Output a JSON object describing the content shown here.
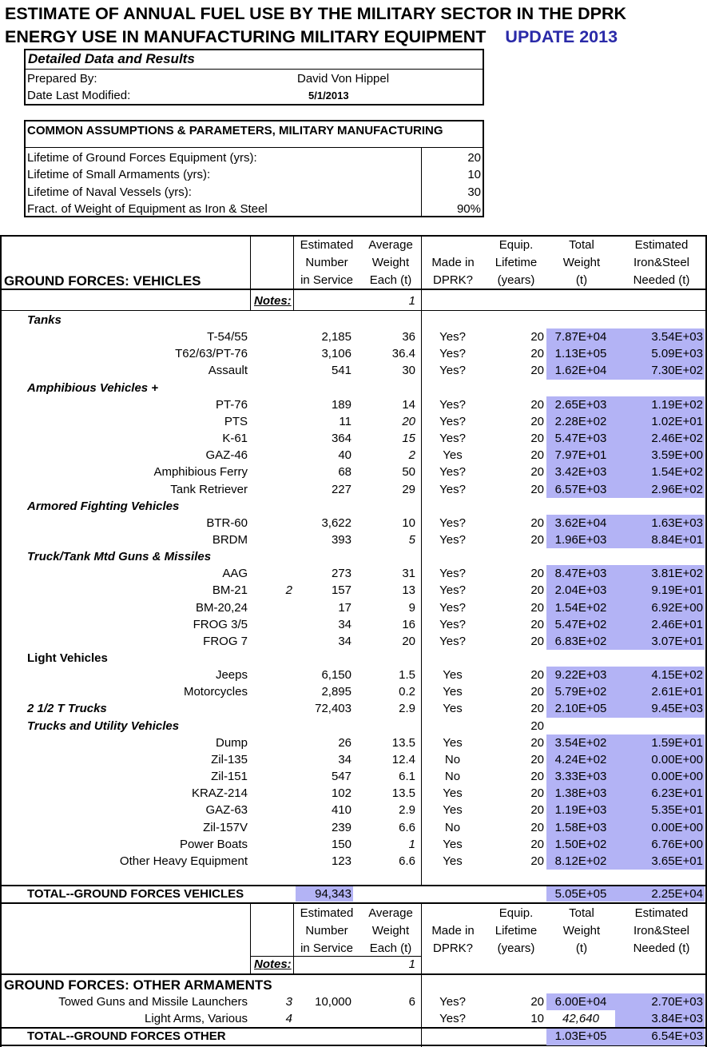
{
  "title_line1": "ESTIMATE OF ANNUAL FUEL USE BY THE MILITARY SECTOR IN THE DPRK",
  "title_line2": "ENERGY USE IN MANUFACTURING MILITARY EQUIPMENT",
  "update": "UPDATE 2013",
  "info": {
    "heading": "Detailed Data and Results",
    "prepared_label": "Prepared By:",
    "prepared_value": "David Von Hippel",
    "modified_label": "Date Last Modified:",
    "modified_value": "5/1/2013"
  },
  "assumptions": {
    "heading": "COMMON ASSUMPTIONS & PARAMETERS, MILITARY MANUFACTURING",
    "rows": [
      {
        "label": "Lifetime of Ground Forces Equipment (yrs):",
        "value": "20"
      },
      {
        "label": "Lifetime of Small Armaments (yrs):",
        "value": "10"
      },
      {
        "label": "Lifetime of Naval Vessels (yrs):",
        "value": "30"
      },
      {
        "label": "Fract. of Weight of Equipment as Iron & Steel",
        "value": "90%"
      }
    ]
  },
  "headers": {
    "est": [
      "Estimated",
      "Number",
      "in Service"
    ],
    "avg": [
      "Average",
      "Weight",
      "Each (t)"
    ],
    "made": [
      "",
      "Made in",
      "DPRK?"
    ],
    "life": [
      "Equip.",
      "Lifetime",
      "(years)"
    ],
    "tw": [
      "Total",
      "Weight",
      "(t)"
    ],
    "iron": [
      "Estimated",
      "Iron&Steel",
      "Needed (t)"
    ]
  },
  "section1": {
    "title": "GROUND FORCES: VEHICLES",
    "notes_label": "Notes:",
    "notes_value": "1",
    "rows": [
      {
        "type": "cat",
        "label": "Tanks",
        "style": "bi"
      },
      {
        "label": "T-54/55",
        "note": "",
        "num": "2,185",
        "wt": "36",
        "wti": false,
        "made": "Yes?",
        "life": "20",
        "tw": "7.87E+04",
        "iron": "3.54E+03"
      },
      {
        "label": "T62/63/PT-76",
        "note": "",
        "num": "3,106",
        "wt": "36.4",
        "wti": false,
        "made": "Yes?",
        "life": "20",
        "tw": "1.13E+05",
        "iron": "5.09E+03"
      },
      {
        "label": "Assault",
        "note": "",
        "num": "541",
        "wt": "30",
        "wti": false,
        "made": "Yes?",
        "life": "20",
        "tw": "1.62E+04",
        "iron": "7.30E+02"
      },
      {
        "type": "cat",
        "label": "Amphibious Vehicles +",
        "style": "bi"
      },
      {
        "label": "PT-76",
        "note": "",
        "num": "189",
        "wt": "14",
        "wti": false,
        "made": "Yes?",
        "life": "20",
        "tw": "2.65E+03",
        "iron": "1.19E+02"
      },
      {
        "label": "PTS",
        "note": "",
        "num": "11",
        "wt": "20",
        "wti": true,
        "made": "Yes?",
        "life": "20",
        "tw": "2.28E+02",
        "iron": "1.02E+01"
      },
      {
        "label": "K-61",
        "note": "",
        "num": "364",
        "wt": "15",
        "wti": true,
        "made": "Yes?",
        "life": "20",
        "tw": "5.47E+03",
        "iron": "2.46E+02"
      },
      {
        "label": "GAZ-46",
        "note": "",
        "num": "40",
        "wt": "2",
        "wti": true,
        "made": "Yes",
        "life": "20",
        "tw": "7.97E+01",
        "iron": "3.59E+00"
      },
      {
        "label": "Amphibious Ferry",
        "note": "",
        "num": "68",
        "wt": "50",
        "wti": false,
        "made": "Yes?",
        "life": "20",
        "tw": "3.42E+03",
        "iron": "1.54E+02"
      },
      {
        "label": "Tank Retriever",
        "note": "",
        "num": "227",
        "wt": "29",
        "wti": false,
        "made": "Yes?",
        "life": "20",
        "tw": "6.57E+03",
        "iron": "2.96E+02"
      },
      {
        "type": "cat",
        "label": "Armored Fighting Vehicles",
        "style": "bi"
      },
      {
        "label": "BTR-60",
        "note": "",
        "num": "3,622",
        "wt": "10",
        "wti": false,
        "made": "Yes?",
        "life": "20",
        "tw": "3.62E+04",
        "iron": "1.63E+03"
      },
      {
        "label": "BRDM",
        "note": "",
        "num": "393",
        "wt": "5",
        "wti": true,
        "made": "Yes?",
        "life": "20",
        "tw": "1.96E+03",
        "iron": "8.84E+01"
      },
      {
        "type": "cat",
        "label": "Truck/Tank Mtd Guns & Missiles",
        "style": "bi"
      },
      {
        "label": "AAG",
        "note": "",
        "num": "273",
        "wt": "31",
        "wti": false,
        "made": "Yes?",
        "life": "20",
        "tw": "8.47E+03",
        "iron": "3.81E+02"
      },
      {
        "label": "BM-21",
        "note": "2",
        "num": "157",
        "wt": "13",
        "wti": false,
        "made": "Yes?",
        "life": "20",
        "tw": "2.04E+03",
        "iron": "9.19E+01"
      },
      {
        "label": "BM-20,24",
        "note": "",
        "num": "17",
        "wt": "9",
        "wti": false,
        "made": "Yes?",
        "life": "20",
        "tw": "1.54E+02",
        "iron": "6.92E+00"
      },
      {
        "label": "FROG 3/5",
        "note": "",
        "num": "34",
        "wt": "16",
        "wti": false,
        "made": "Yes?",
        "life": "20",
        "tw": "5.47E+02",
        "iron": "2.46E+01"
      },
      {
        "label": "FROG 7",
        "note": "",
        "num": "34",
        "wt": "20",
        "wti": false,
        "made": "Yes?",
        "life": "20",
        "tw": "6.83E+02",
        "iron": "3.07E+01"
      },
      {
        "type": "cat",
        "label": "Light Vehicles",
        "style": "b"
      },
      {
        "label": "Jeeps",
        "note": "",
        "num": "6,150",
        "wt": "1.5",
        "wti": false,
        "made": "Yes",
        "life": "20",
        "tw": "9.22E+03",
        "iron": "4.15E+02"
      },
      {
        "label": "Motorcycles",
        "note": "",
        "num": "2,895",
        "wt": "0.2",
        "wti": false,
        "made": "Yes",
        "life": "20",
        "tw": "5.79E+02",
        "iron": "2.61E+01"
      },
      {
        "type": "catdata",
        "label": "2 1/2 T Trucks",
        "num": "72,403",
        "wt": "2.9",
        "made": "Yes",
        "life": "20",
        "tw": "2.10E+05",
        "iron": "9.45E+03"
      },
      {
        "type": "catlife",
        "label": "Trucks and Utility Vehicles",
        "life": "20"
      },
      {
        "label": "Dump",
        "note": "",
        "num": "26",
        "wt": "13.5",
        "wti": false,
        "made": "Yes",
        "life": "20",
        "tw": "3.54E+02",
        "iron": "1.59E+01"
      },
      {
        "label": "Zil-135",
        "note": "",
        "num": "34",
        "wt": "12.4",
        "wti": false,
        "made": "No",
        "life": "20",
        "tw": "4.24E+02",
        "iron": "0.00E+00"
      },
      {
        "label": "Zil-151",
        "note": "",
        "num": "547",
        "wt": "6.1",
        "wti": false,
        "made": "No",
        "life": "20",
        "tw": "3.33E+03",
        "iron": "0.00E+00"
      },
      {
        "label": "KRAZ-214",
        "note": "",
        "num": "102",
        "wt": "13.5",
        "wti": false,
        "made": "Yes",
        "life": "20",
        "tw": "1.38E+03",
        "iron": "6.23E+01"
      },
      {
        "label": "GAZ-63",
        "note": "",
        "num": "410",
        "wt": "2.9",
        "wti": false,
        "made": "Yes",
        "life": "20",
        "tw": "1.19E+03",
        "iron": "5.35E+01"
      },
      {
        "label": "Zil-157V",
        "note": "",
        "num": "239",
        "wt": "6.6",
        "wti": false,
        "made": "No",
        "life": "20",
        "tw": "1.58E+03",
        "iron": "0.00E+00"
      },
      {
        "label": "Power Boats",
        "note": "",
        "num": "150",
        "wt": "1",
        "wti": true,
        "made": "Yes",
        "life": "20",
        "tw": "1.50E+02",
        "iron": "6.76E+00"
      },
      {
        "label": "Other Heavy Equipment",
        "note": "",
        "num": "123",
        "wt": "6.6",
        "wti": false,
        "made": "Yes",
        "life": "20",
        "tw": "8.12E+02",
        "iron": "3.65E+01"
      }
    ],
    "total": {
      "label": "TOTAL--GROUND FORCES VEHICLES",
      "num": "94,343",
      "tw": "5.05E+05",
      "iron": "2.25E+04"
    }
  },
  "section2": {
    "title": "GROUND FORCES: OTHER ARMAMENTS",
    "notes_label": "Notes:",
    "notes_value": "1",
    "rows": [
      {
        "label": "Towed Guns and Missile Launchers",
        "note": "3",
        "num": "10,000",
        "wt": "6",
        "made": "Yes?",
        "life": "20",
        "tw": "6.00E+04",
        "twi": false,
        "iron": "2.70E+03"
      },
      {
        "label": "Light Arms, Various",
        "note": "4",
        "num": "",
        "wt": "",
        "made": "Yes?",
        "life": "10",
        "tw": "42,640",
        "twi": true,
        "iron": "3.84E+03"
      }
    ],
    "total": {
      "label": "TOTAL--GROUND FORCES OTHER",
      "tw": "1.03E+05",
      "iron": "6.54E+03"
    }
  }
}
